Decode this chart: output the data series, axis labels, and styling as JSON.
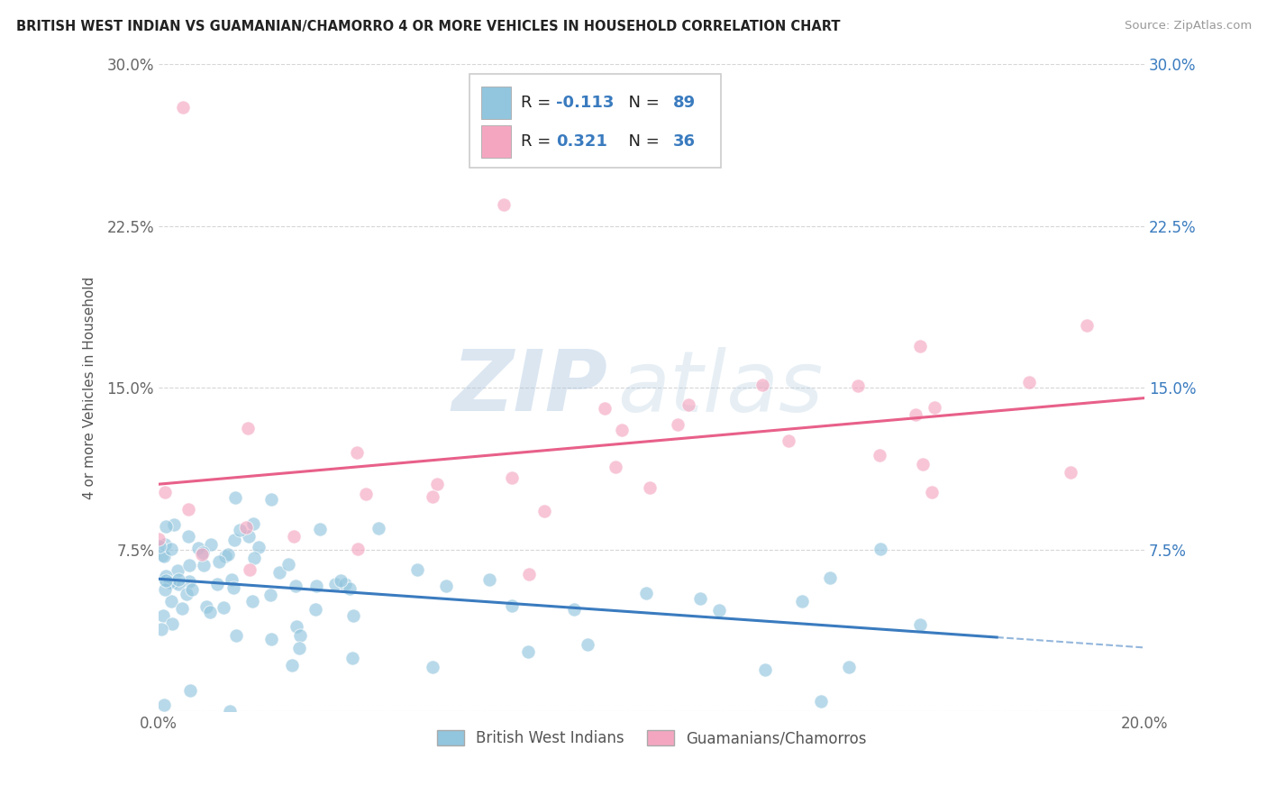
{
  "title": "BRITISH WEST INDIAN VS GUAMANIAN/CHAMORRO 4 OR MORE VEHICLES IN HOUSEHOLD CORRELATION CHART",
  "source": "Source: ZipAtlas.com",
  "ylabel": "4 or more Vehicles in Household",
  "xlim": [
    0.0,
    0.2
  ],
  "ylim": [
    0.0,
    0.3
  ],
  "xtick_positions": [
    0.0,
    0.05,
    0.1,
    0.15,
    0.2
  ],
  "xticklabels": [
    "0.0%",
    "",
    "",
    "",
    "20.0%"
  ],
  "ytick_positions": [
    0.0,
    0.075,
    0.15,
    0.225,
    0.3
  ],
  "yticklabels": [
    "",
    "7.5%",
    "15.0%",
    "22.5%",
    "30.0%"
  ],
  "blue_R": "-0.113",
  "blue_N": "89",
  "pink_R": "0.321",
  "pink_N": "36",
  "blue_color": "#92c5de",
  "pink_color": "#f4a6c0",
  "blue_line_color": "#3a7bbf",
  "pink_line_color": "#e8608a",
  "watermark_zip": "ZIP",
  "watermark_atlas": "atlas",
  "background_color": "#ffffff",
  "grid_color": "#cccccc",
  "blue_label": "British West Indians",
  "pink_label": "Guamanians/Chamorros",
  "blue_seed": 17,
  "pink_seed": 99
}
